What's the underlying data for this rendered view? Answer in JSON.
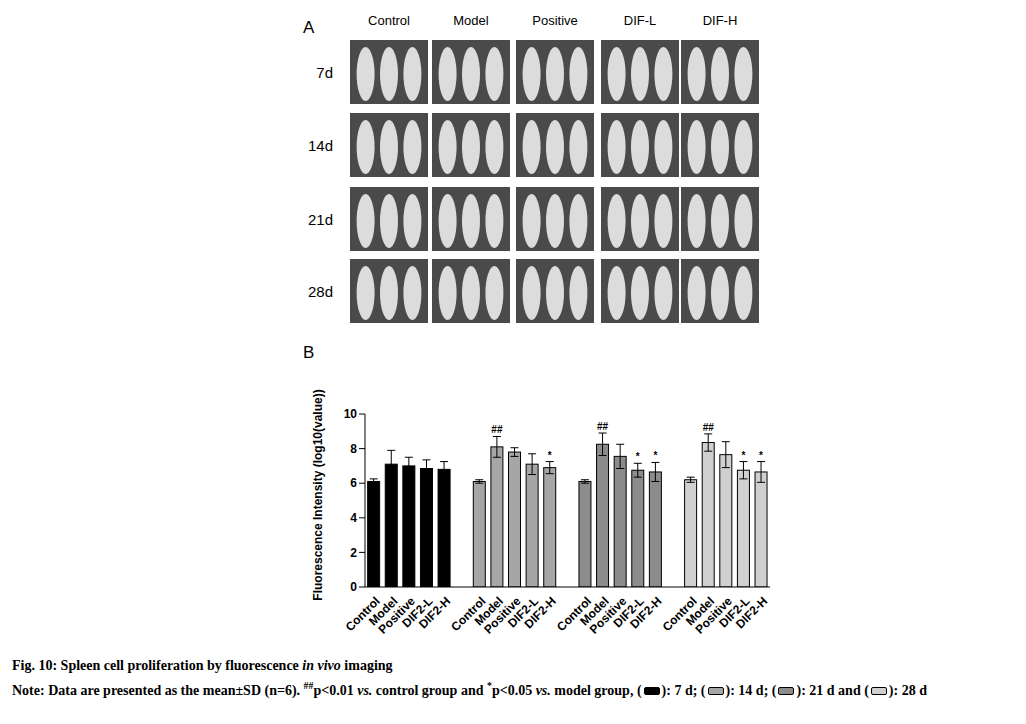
{
  "panel_a": {
    "label": "A",
    "columns": [
      "Control",
      "Model",
      "Positive",
      "DIF-L",
      "DIF-H"
    ],
    "rows": [
      "7d",
      "14d",
      "21d",
      "28d"
    ]
  },
  "chart_data": {
    "type": "bar",
    "panel_label": "B",
    "ylabel": "Fluorescence Intensity (log10(value))",
    "categories": [
      "Control",
      "Model",
      "Positive",
      "DIF2-L",
      "DIF2-H",
      null,
      "Control",
      "Model",
      "Positive",
      "DIF2-L",
      "DIF2-H",
      null,
      "Control",
      "Model",
      "Positive",
      "DIF2-L",
      "DIF2-H",
      null,
      "Control",
      "Model",
      "Positive",
      "DIF2-L",
      "DIF2-H"
    ],
    "values": [
      6.1,
      7.1,
      7.0,
      6.85,
      6.8,
      null,
      6.1,
      8.1,
      7.8,
      7.1,
      6.9,
      null,
      6.1,
      8.25,
      7.55,
      6.75,
      6.65,
      null,
      6.2,
      8.35,
      7.65,
      6.75,
      6.65
    ],
    "errors": [
      0.15,
      0.8,
      0.5,
      0.5,
      0.45,
      null,
      0.1,
      0.6,
      0.25,
      0.6,
      0.35,
      null,
      0.1,
      0.65,
      0.7,
      0.4,
      0.55,
      null,
      0.15,
      0.5,
      0.75,
      0.5,
      0.6
    ],
    "annotations": [
      null,
      null,
      null,
      null,
      null,
      null,
      null,
      "##",
      null,
      null,
      "*",
      null,
      null,
      "##",
      null,
      "*",
      "*",
      null,
      null,
      "##",
      null,
      "*",
      "*"
    ],
    "colors": [
      "#000000",
      "#000000",
      "#000000",
      "#000000",
      "#000000",
      null,
      "#a6a6a6",
      "#a6a6a6",
      "#a6a6a6",
      "#a6a6a6",
      "#a6a6a6",
      null,
      "#8c8c8c",
      "#8c8c8c",
      "#8c8c8c",
      "#8c8c8c",
      "#8c8c8c",
      null,
      "#d0d0d0",
      "#d0d0d0",
      "#d0d0d0",
      "#d0d0d0",
      "#d0d0d0"
    ],
    "ylim": [
      0,
      10
    ],
    "yticks": [
      0,
      2,
      4,
      6,
      8,
      10
    ],
    "grid": false
  },
  "caption": {
    "title": [
      {
        "text": "Fig. 10: Spleen cell proliferation by fluorescence "
      },
      {
        "text": "in vivo",
        "style": "italic"
      },
      {
        "text": " imaging"
      }
    ],
    "note": [
      {
        "text": "Note: Data are presented as the mean±SD (n=6). "
      },
      {
        "text": "##",
        "style": "sup"
      },
      {
        "text": "p<0.01 "
      },
      {
        "text": "vs.",
        "style": "italic"
      },
      {
        "text": " control group and "
      },
      {
        "text": "*",
        "style": "sup"
      },
      {
        "text": "p<0.05 "
      },
      {
        "text": "vs.",
        "style": "italic"
      },
      {
        "text": " model group, "
      }
    ],
    "legend": [
      {
        "before": "(",
        "color": "#000000",
        "after": "): 7 d; "
      },
      {
        "before": "(",
        "color": "#a6a6a6",
        "after": "): 14 d; "
      },
      {
        "before": "(",
        "color": "#8c8c8c",
        "after": "): 21 d and "
      },
      {
        "before": "(",
        "color": "#d0d0d0",
        "after": "): 28 d"
      }
    ]
  }
}
